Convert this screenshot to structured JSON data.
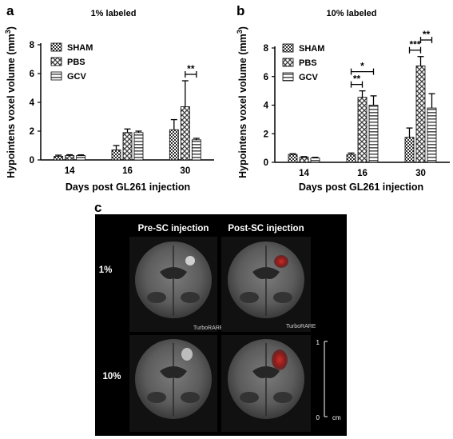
{
  "panels": {
    "a": {
      "letter": "a",
      "title": "1% labeled"
    },
    "b": {
      "letter": "b",
      "title": "10% labeled"
    },
    "c": {
      "letter": "c",
      "col_headers": [
        "Pre-SC injection",
        "Post-SC injection"
      ],
      "row_labels": [
        "1%",
        "10%"
      ],
      "watermark": "TurboRARE",
      "scale_top": "1",
      "scale_bottom": "0",
      "scale_unit": "cm"
    }
  },
  "colors": {
    "sham": "#2b2b2b",
    "pbs": "#3c3c3c",
    "gcv": "#555555",
    "lesion": "#a2211f"
  },
  "chart_data": [
    {
      "type": "bar",
      "title": "1% labeled",
      "xlabel": "Days post GL261 injection",
      "ylabel": "Hypointens voxel volume (mm",
      "ylabel_sup": "3",
      "ylabel_end": ")",
      "categories": [
        "14",
        "16",
        "30"
      ],
      "ylim": [
        0,
        8
      ],
      "yticks": [
        "0",
        "2",
        "4",
        "6",
        "8"
      ],
      "legend_position": "top-left",
      "series": [
        {
          "name": "SHAM",
          "values": [
            0.25,
            0.7,
            2.1
          ],
          "errors": [
            0.08,
            0.3,
            0.7
          ]
        },
        {
          "name": "PBS",
          "values": [
            0.3,
            1.9,
            3.7
          ],
          "errors": [
            0.06,
            0.25,
            1.8
          ]
        },
        {
          "name": "GCV",
          "values": [
            0.3,
            1.9,
            1.4
          ],
          "errors": [
            0.05,
            0.1,
            0.1
          ]
        }
      ],
      "significance": [
        {
          "label": "**",
          "group": "30",
          "from": "PBS",
          "to": "GCV"
        }
      ]
    },
    {
      "type": "bar",
      "title": "10% labeled",
      "xlabel": "Days post GL261 injection",
      "ylabel": "Hypointens voxel volume (mm",
      "ylabel_sup": "3",
      "ylabel_end": ")",
      "categories": [
        "14",
        "16",
        "30"
      ],
      "ylim": [
        0,
        8
      ],
      "yticks": [
        "0",
        "2",
        "4",
        "6",
        "8"
      ],
      "legend_position": "top-left",
      "series": [
        {
          "name": "SHAM",
          "values": [
            0.55,
            0.55,
            1.75
          ],
          "errors": [
            0.05,
            0.1,
            0.65
          ]
        },
        {
          "name": "PBS",
          "values": [
            0.35,
            4.55,
            6.75
          ],
          "errors": [
            0.05,
            0.45,
            0.65
          ]
        },
        {
          "name": "GCV",
          "values": [
            0.3,
            4.0,
            3.8
          ],
          "errors": [
            0.05,
            0.65,
            1.0
          ]
        }
      ],
      "significance": [
        {
          "label": "**",
          "group": "16",
          "from": "SHAM",
          "to": "PBS"
        },
        {
          "label": "*",
          "group": "16",
          "from": "SHAM",
          "to": "GCV"
        },
        {
          "label": "***",
          "group": "30",
          "from": "SHAM",
          "to": "PBS"
        },
        {
          "label": "**",
          "group": "30",
          "from": "PBS",
          "to": "GCV"
        }
      ]
    }
  ]
}
